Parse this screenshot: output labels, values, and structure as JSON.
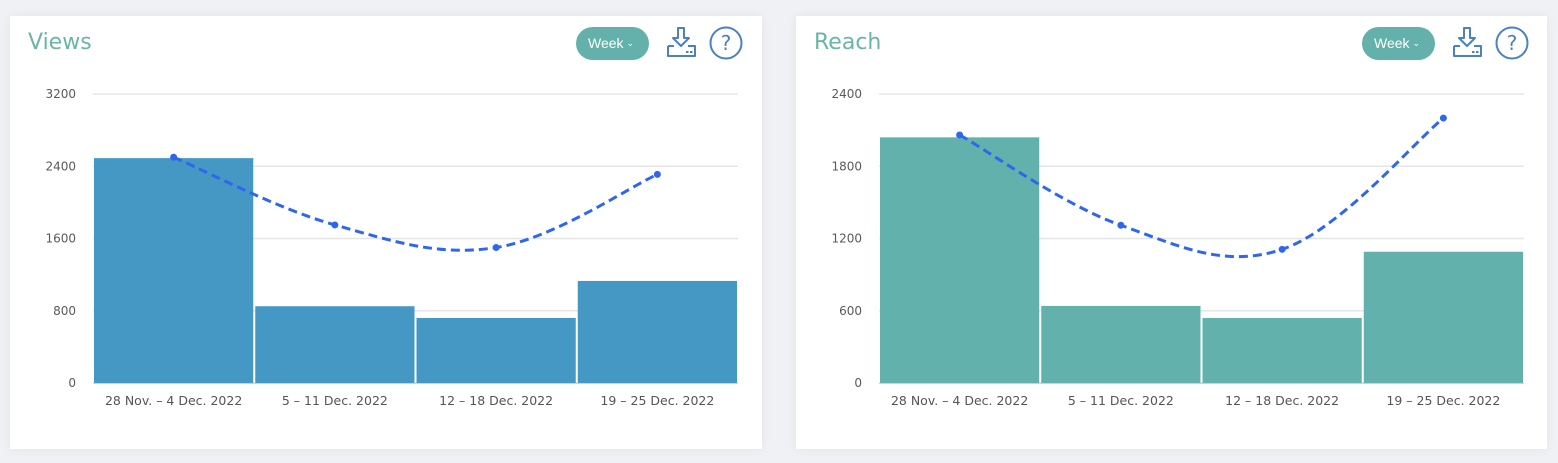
{
  "cards": [
    {
      "title": "Views",
      "period_label": "Week",
      "icons": [
        "download-icon",
        "help-icon"
      ],
      "bar_color": "#4598c3"
    },
    {
      "title": "Reach",
      "period_label": "Week",
      "icons": [
        "download-icon",
        "help-icon"
      ],
      "bar_color": "#63b1ad"
    }
  ],
  "chart_data": [
    {
      "type": "bar",
      "title": "Views",
      "categories": [
        "28 Nov. – 4 Dec. 2022",
        "5 – 11 Dec. 2022",
        "12 – 18 Dec. 2022",
        "19 – 25 Dec. 2022"
      ],
      "series": [
        {
          "name": "Views",
          "kind": "bar",
          "color": "#4598c3",
          "values": [
            2490,
            850,
            720,
            1130
          ]
        },
        {
          "name": "Trend",
          "kind": "line",
          "style": "dashed-smooth",
          "color": "#2f66f0",
          "values": [
            2500,
            1750,
            1500,
            2310
          ]
        }
      ],
      "yticks": [
        0,
        800,
        1600,
        2400,
        3200
      ],
      "ylim": [
        0,
        3200
      ],
      "xlabel": "",
      "ylabel": "",
      "grid": true
    },
    {
      "type": "bar",
      "title": "Reach",
      "categories": [
        "28 Nov. – 4 Dec. 2022",
        "5 – 11 Dec. 2022",
        "12 – 18 Dec. 2022",
        "19 – 25 Dec. 2022"
      ],
      "series": [
        {
          "name": "Reach",
          "kind": "bar",
          "color": "#63b1ad",
          "values": [
            2040,
            640,
            540,
            1090
          ]
        },
        {
          "name": "Trend",
          "kind": "line",
          "style": "dashed-smooth",
          "color": "#2f66f0",
          "values": [
            2060,
            1310,
            1110,
            2200
          ]
        }
      ],
      "yticks": [
        0,
        600,
        1200,
        1800,
        2400
      ],
      "ylim": [
        0,
        2400
      ],
      "xlabel": "",
      "ylabel": "",
      "grid": true
    }
  ]
}
